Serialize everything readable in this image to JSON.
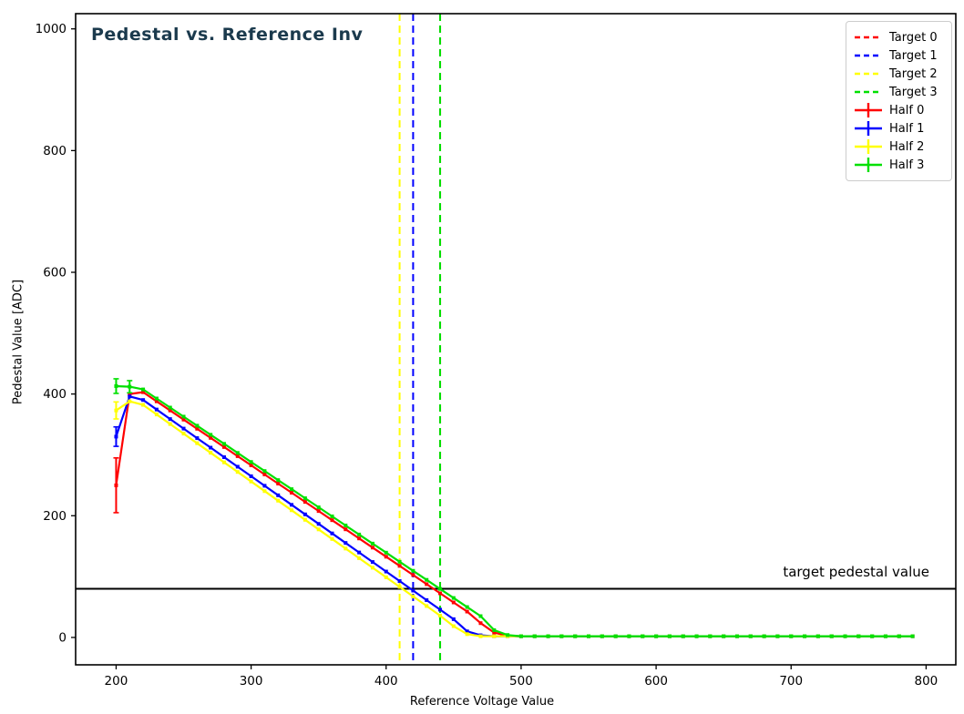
{
  "title": "Pedestal vs. Reference Inv",
  "title_color": "#1b3a4d",
  "annotation": "target pedestal value",
  "axes": {
    "xlabel": "Reference Voltage Value",
    "ylabel": "Pedestal Value [ADC]"
  },
  "legend": {
    "position": "upper right",
    "items": [
      {
        "label": "Target 0",
        "color": "#ff0000",
        "style": "dashed"
      },
      {
        "label": "Target 1",
        "color": "#0000ff",
        "style": "dashed"
      },
      {
        "label": "Target 2",
        "color": "#ffff00",
        "style": "dashed"
      },
      {
        "label": "Target 3",
        "color": "#00e000",
        "style": "dashed"
      },
      {
        "label": "Half 0",
        "color": "#ff0000",
        "style": "errorbar"
      },
      {
        "label": "Half 1",
        "color": "#0000ff",
        "style": "errorbar"
      },
      {
        "label": "Half 2",
        "color": "#ffff00",
        "style": "errorbar"
      },
      {
        "label": "Half 3",
        "color": "#00e000",
        "style": "errorbar"
      }
    ]
  },
  "chart_data": {
    "type": "line",
    "title": "Pedestal vs. Reference Inv",
    "xlabel": "Reference Voltage Value",
    "ylabel": "Pedestal Value [ADC]",
    "xlim": [
      170,
      822
    ],
    "ylim": [
      -45,
      1025
    ],
    "x_ticks": [
      200,
      300,
      400,
      500,
      600,
      700,
      800
    ],
    "y_ticks": [
      0,
      200,
      400,
      600,
      800,
      1000
    ],
    "grid": false,
    "legend_position": "upper right",
    "hline": {
      "y": 80,
      "color": "#000000",
      "label": "target pedestal value"
    },
    "vlines": [
      {
        "name": "Target 0",
        "x": 440,
        "color": "#ff0000",
        "style": "dashed",
        "note": "overlapped by Target 3 line"
      },
      {
        "name": "Target 1",
        "x": 420,
        "color": "#0000ff",
        "style": "dashed"
      },
      {
        "name": "Target 2",
        "x": 410,
        "color": "#ffff00",
        "style": "dashed"
      },
      {
        "name": "Target 3",
        "x": 440,
        "color": "#00e000",
        "style": "dashed"
      }
    ],
    "marker_step": 10,
    "x_range": [
      200,
      790
    ],
    "series": [
      {
        "name": "Half 0",
        "color": "#ff0000",
        "anchors": [
          [
            200,
            250
          ],
          [
            210,
            400
          ],
          [
            215,
            404
          ],
          [
            220,
            403
          ],
          [
            465,
            35
          ],
          [
            475,
            12
          ],
          [
            485,
            4
          ],
          [
            492,
            2
          ],
          [
            790,
            2
          ]
        ],
        "error_bars": [
          {
            "x": 200,
            "y": 250,
            "err": 45
          }
        ]
      },
      {
        "name": "Half 1",
        "color": "#0000ff",
        "anchors": [
          [
            200,
            330
          ],
          [
            210,
            396
          ],
          [
            215,
            398
          ],
          [
            450,
            30
          ],
          [
            460,
            10
          ],
          [
            468,
            4
          ],
          [
            477,
            2
          ],
          [
            790,
            2
          ]
        ],
        "error_bars": [
          {
            "x": 200,
            "y": 330,
            "err": 16
          }
        ]
      },
      {
        "name": "Half 2",
        "color": "#ffff00",
        "anchors": [
          [
            200,
            373
          ],
          [
            210,
            388
          ],
          [
            215,
            390
          ],
          [
            445,
            28
          ],
          [
            455,
            9
          ],
          [
            462,
            4
          ],
          [
            470,
            2
          ],
          [
            790,
            2
          ]
        ],
        "error_bars": [
          {
            "x": 200,
            "y": 373,
            "err": 14
          }
        ]
      },
      {
        "name": "Half 3",
        "color": "#00e000",
        "anchors": [
          [
            200,
            413
          ],
          [
            210,
            412
          ],
          [
            215,
            415
          ],
          [
            470,
            35
          ],
          [
            480,
            12
          ],
          [
            490,
            4
          ],
          [
            497,
            2
          ],
          [
            790,
            2
          ]
        ],
        "error_bars": [
          {
            "x": 200,
            "y": 413,
            "err": 12
          },
          {
            "x": 210,
            "y": 412,
            "err": 10
          }
        ]
      }
    ]
  }
}
